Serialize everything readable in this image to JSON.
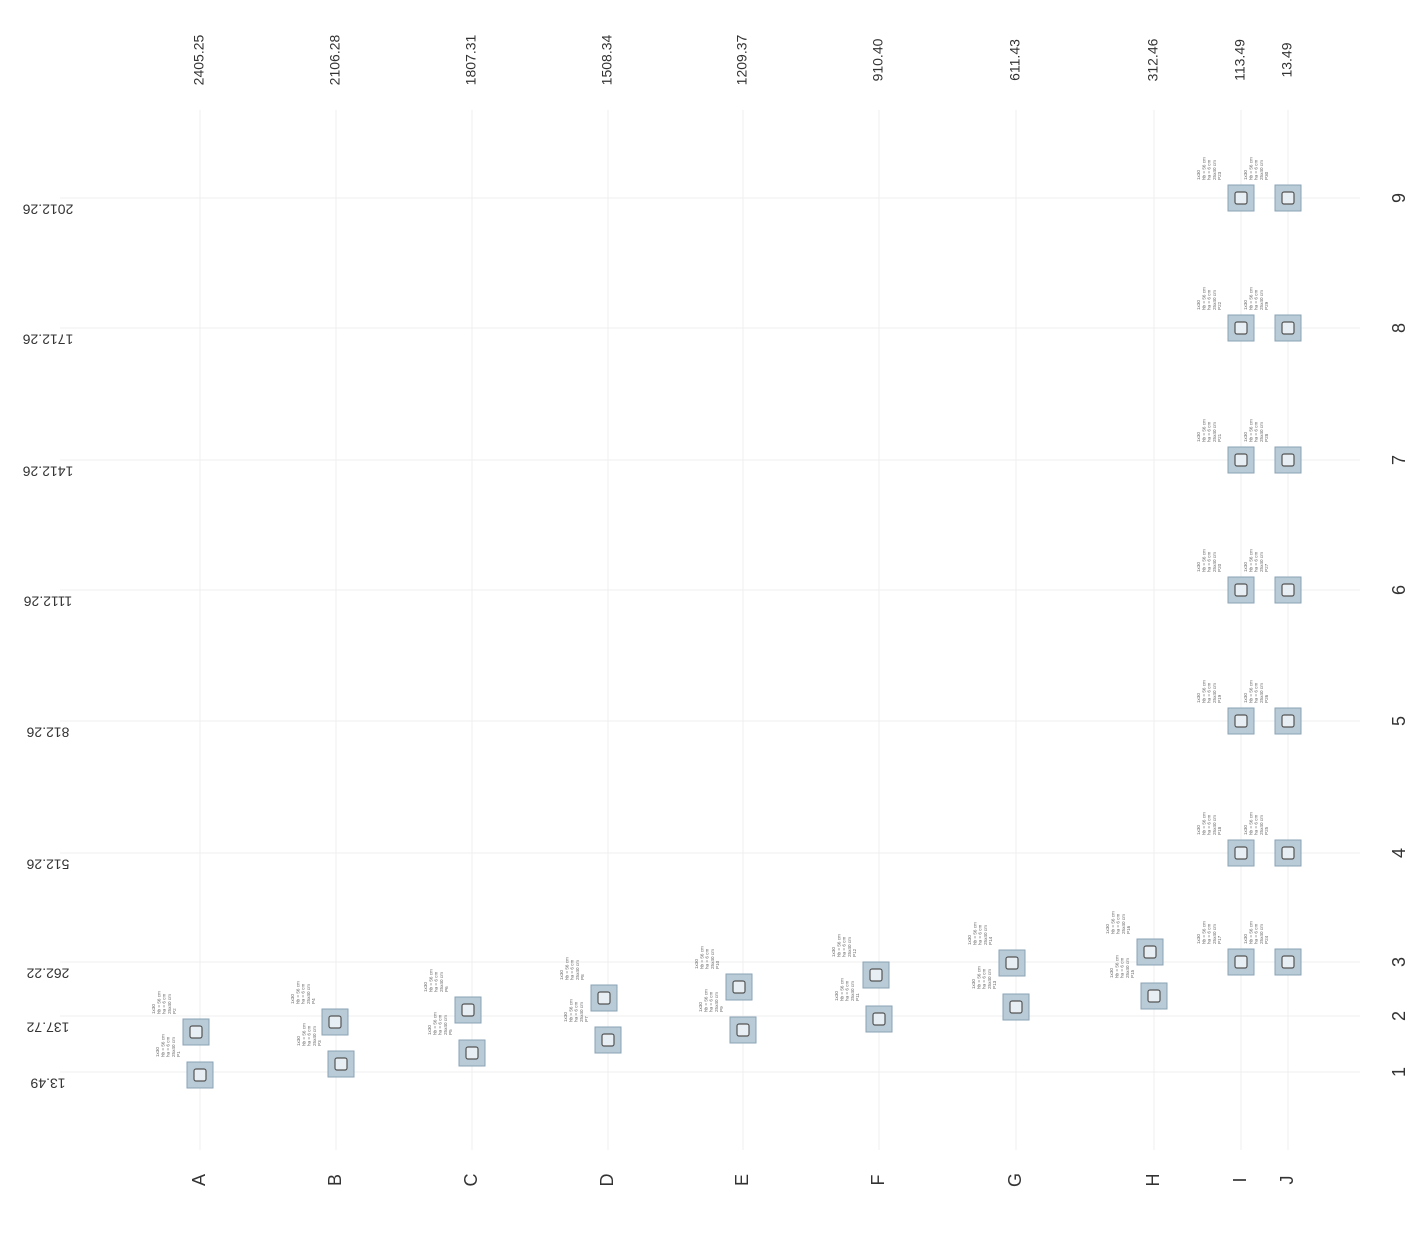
{
  "axes": {
    "letters": [
      {
        "label": "A",
        "coord": "2405.25"
      },
      {
        "label": "B",
        "coord": "2106.28"
      },
      {
        "label": "C",
        "coord": "1807.31"
      },
      {
        "label": "D",
        "coord": "1508.34"
      },
      {
        "label": "E",
        "coord": "1209.37"
      },
      {
        "label": "F",
        "coord": "910.40"
      },
      {
        "label": "G",
        "coord": "611.43"
      },
      {
        "label": "H",
        "coord": "312.46"
      },
      {
        "label": "I",
        "coord": "113.49"
      },
      {
        "label": "J",
        "coord": "13.49"
      }
    ],
    "numbers": [
      {
        "label": "1",
        "coord": "13.49"
      },
      {
        "label": "2",
        "coord": "137.72"
      },
      {
        "label": "3",
        "coord": "262.22"
      },
      {
        "label": "4",
        "coord": "512.26"
      },
      {
        "label": "5",
        "coord": "812.26"
      },
      {
        "label": "6",
        "coord": "1112.26"
      },
      {
        "label": "7",
        "coord": "1412.26"
      },
      {
        "label": "8",
        "coord": "1712.26"
      },
      {
        "label": "9",
        "coord": "2012.26"
      }
    ]
  },
  "pillars": [
    {
      "id": "P1",
      "col": "A",
      "row": "1"
    },
    {
      "id": "P2",
      "col": "A",
      "row": "2"
    },
    {
      "id": "P3",
      "col": "B",
      "row": "1"
    },
    {
      "id": "P4",
      "col": "B",
      "row": "2"
    },
    {
      "id": "P5",
      "col": "C",
      "row": "1"
    },
    {
      "id": "P6",
      "col": "C",
      "row": "2"
    },
    {
      "id": "P7",
      "col": "D",
      "row": "1"
    },
    {
      "id": "P8",
      "col": "D",
      "row": "2"
    },
    {
      "id": "P9",
      "col": "E",
      "row": "1"
    },
    {
      "id": "P10",
      "col": "E",
      "row": "2"
    },
    {
      "id": "P11",
      "col": "F",
      "row": "1"
    },
    {
      "id": "P12",
      "col": "F",
      "row": "2"
    },
    {
      "id": "P13",
      "col": "G",
      "row": "1"
    },
    {
      "id": "P14",
      "col": "G",
      "row": "2"
    },
    {
      "id": "P15",
      "col": "H",
      "row": "1"
    },
    {
      "id": "P16",
      "col": "H",
      "row": "2"
    },
    {
      "id": "P17",
      "col": "I",
      "row": "3"
    },
    {
      "id": "P18",
      "col": "I",
      "row": "4"
    },
    {
      "id": "P19",
      "col": "I",
      "row": "5"
    },
    {
      "id": "P20",
      "col": "I",
      "row": "6"
    },
    {
      "id": "P21",
      "col": "I",
      "row": "7"
    },
    {
      "id": "P22",
      "col": "I",
      "row": "8"
    },
    {
      "id": "P23",
      "col": "I",
      "row": "9"
    },
    {
      "id": "P24",
      "col": "J",
      "row": "3"
    },
    {
      "id": "P25",
      "col": "J",
      "row": "4"
    },
    {
      "id": "P26",
      "col": "J",
      "row": "5"
    },
    {
      "id": "P27",
      "col": "J",
      "row": "6"
    },
    {
      "id": "P28",
      "col": "J",
      "row": "7"
    },
    {
      "id": "P29",
      "col": "J",
      "row": "8"
    },
    {
      "id": "P30",
      "col": "J",
      "row": "9"
    }
  ],
  "colors": {
    "pillar_fill": "#b9cbd6",
    "pillar_core": "#e8eff4",
    "grid": "#e6e6e6"
  }
}
